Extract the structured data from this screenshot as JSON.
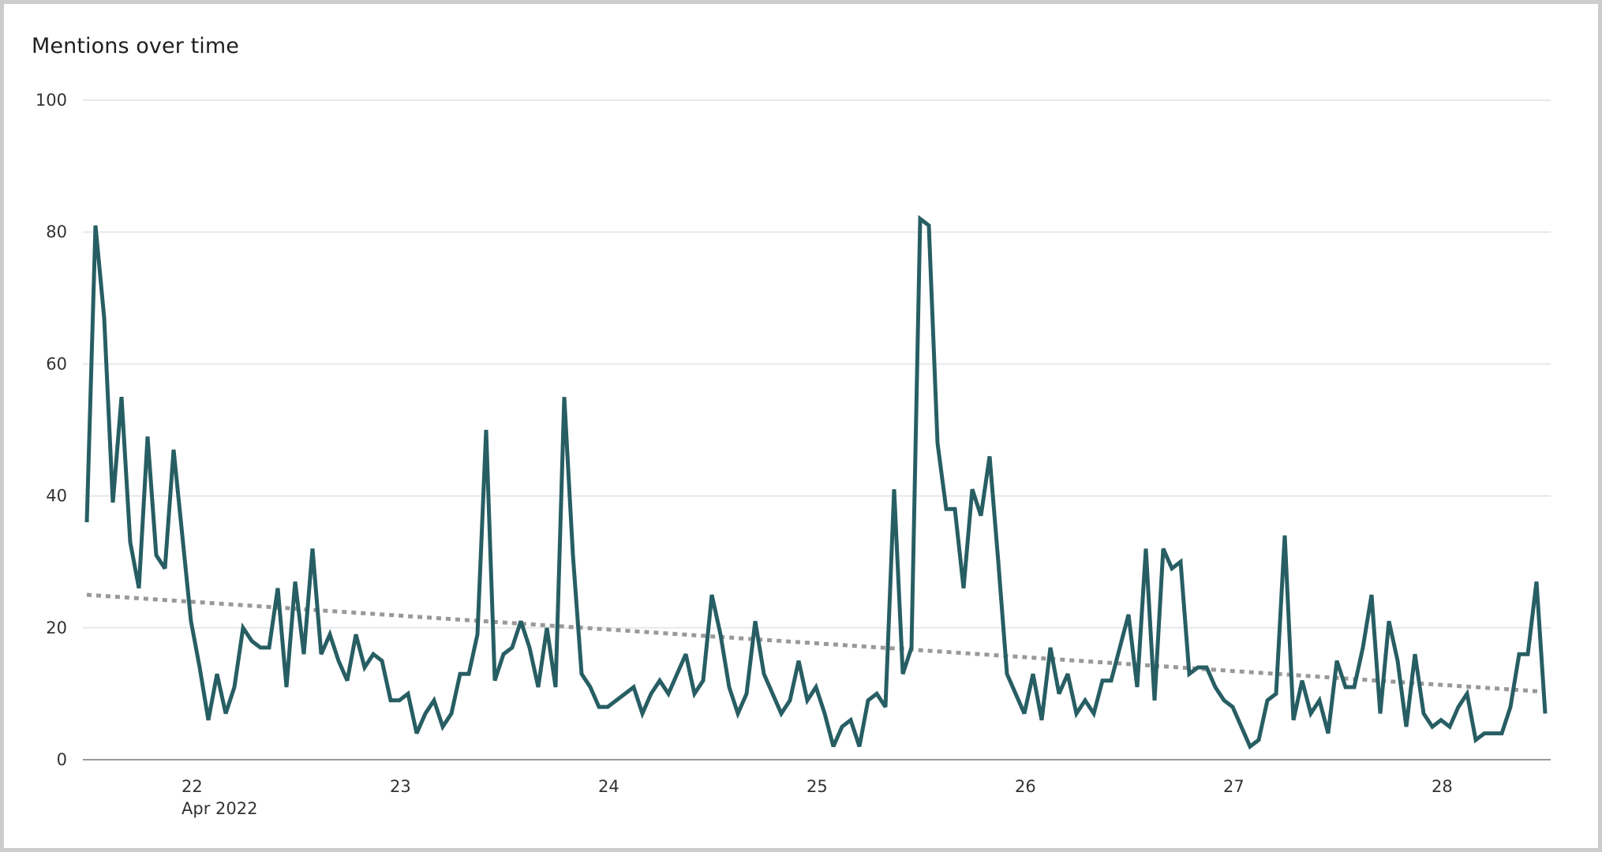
{
  "window": {
    "border_color": "#cccccc",
    "background": "#ffffff"
  },
  "header": {
    "title": "Mentions over time"
  },
  "colors": {
    "series_line": "#275e63",
    "trend_line": "#999999",
    "gridline": "#e6e8ec",
    "axis_line": "#9a9a9a",
    "label_text": "#333333"
  },
  "chart_data": {
    "type": "line",
    "title": "Mentions over time",
    "xlabel": "",
    "ylabel": "",
    "ylim": [
      0,
      100
    ],
    "yticks": [
      0,
      20,
      40,
      60,
      80,
      100
    ],
    "xticks": [
      "22",
      "23",
      "24",
      "25",
      "26",
      "27",
      "28"
    ],
    "xtick_sublabel": "Apr 2022",
    "x_start": "2022-04-21 12:00",
    "x_interval": "1 hour",
    "grid": true,
    "legend": null,
    "series": [
      {
        "name": "Mentions",
        "style": "solid",
        "values": [
          36,
          81,
          67,
          39,
          55,
          33,
          26,
          49,
          31,
          29,
          47,
          34,
          21,
          14,
          6,
          13,
          7,
          11,
          20,
          18,
          17,
          17,
          26,
          11,
          27,
          16,
          32,
          16,
          19,
          15,
          12,
          19,
          14,
          16,
          15,
          9,
          9,
          10,
          4,
          7,
          9,
          5,
          7,
          13,
          13,
          19,
          50,
          12,
          16,
          17,
          21,
          17,
          11,
          20,
          11,
          55,
          31,
          13,
          11,
          8,
          8,
          9,
          10,
          11,
          7,
          10,
          12,
          10,
          13,
          16,
          10,
          12,
          25,
          19,
          11,
          7,
          10,
          21,
          13,
          10,
          7,
          9,
          15,
          9,
          11,
          7,
          2,
          5,
          6,
          2,
          9,
          10,
          8,
          41,
          13,
          17,
          82,
          81,
          48,
          38,
          38,
          26,
          41,
          37,
          46,
          30,
          13,
          10,
          7,
          13,
          6,
          17,
          10,
          13,
          7,
          9,
          7,
          12,
          12,
          17,
          22,
          11,
          32,
          9,
          32,
          29,
          30,
          13,
          14,
          14,
          11,
          9,
          8,
          5,
          2,
          3,
          9,
          10,
          34,
          6,
          12,
          7,
          9,
          4,
          15,
          11,
          11,
          17,
          25,
          7,
          21,
          15,
          5,
          16,
          7,
          5,
          6,
          5,
          8,
          10,
          3,
          4,
          4,
          4,
          8,
          16,
          16,
          27,
          7
        ]
      },
      {
        "name": "Trend",
        "style": "dotted",
        "start": 25.0,
        "end": 10.3
      }
    ]
  }
}
